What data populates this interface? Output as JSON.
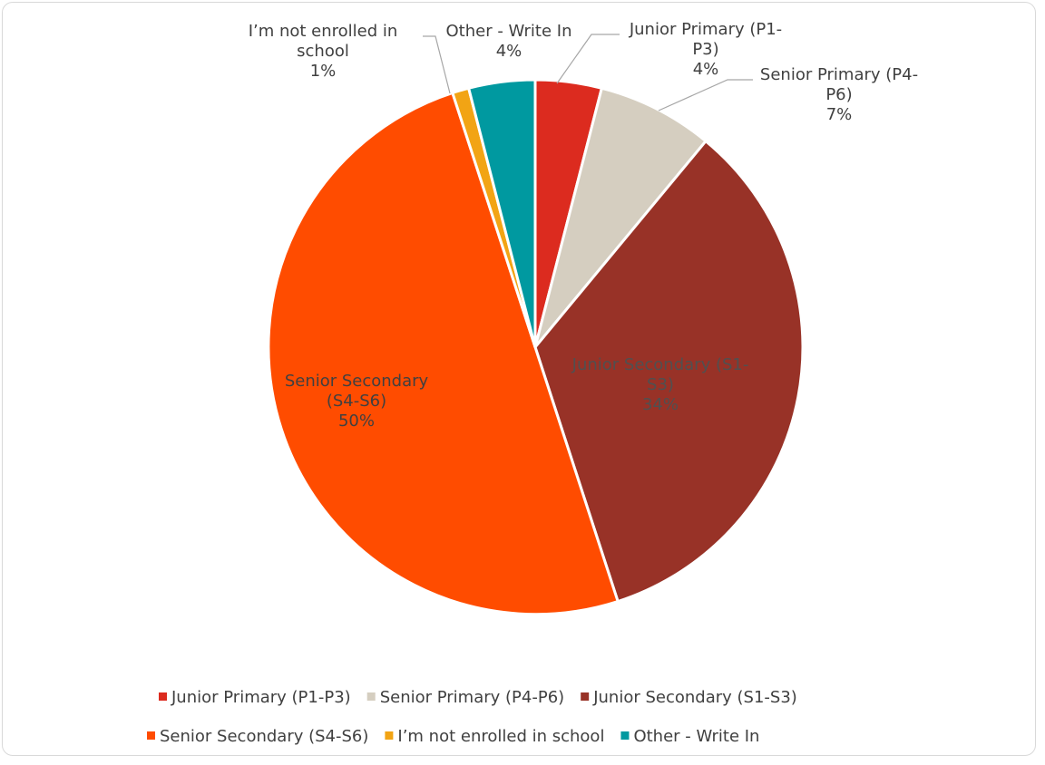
{
  "chart_data": {
    "type": "pie",
    "title": "",
    "legend_position": "bottom",
    "slices": [
      {
        "name": "Junior Primary (P1-P3)",
        "value": 4,
        "label_lines": [
          "Junior Primary (P1-",
          "P3)"
        ],
        "pct_label": "4%",
        "color": "#dc2b1f",
        "label_color": "#404040"
      },
      {
        "name": "Senior Primary (P4-P6)",
        "value": 7,
        "label_lines": [
          "Senior Primary (P4-",
          "P6)"
        ],
        "pct_label": "7%",
        "color": "#d5cec0",
        "label_color": "#404040"
      },
      {
        "name": "Junior Secondary (S1-S3)",
        "value": 34,
        "label_lines": [
          "Junior Secondary (S1-",
          "S3)"
        ],
        "pct_label": "34%",
        "color": "#983227",
        "label_color": "#505050"
      },
      {
        "name": "Senior Secondary (S4-S6)",
        "value": 50,
        "label_lines": [
          "Senior Secondary",
          "(S4-S6)"
        ],
        "pct_label": "50%",
        "color": "#ff4c00",
        "label_color": "#404040"
      },
      {
        "name": "I’m not enrolled in school",
        "value": 1,
        "label_lines": [
          "I’m not enrolled in",
          "school"
        ],
        "pct_label": "1%",
        "color": "#f2a414",
        "label_color": "#404040"
      },
      {
        "name": "Other - Write In",
        "value": 4,
        "label_lines": [
          "Other - Write In"
        ],
        "pct_label": "4%",
        "color": "#0099a0",
        "label_color": "#404040"
      }
    ]
  }
}
